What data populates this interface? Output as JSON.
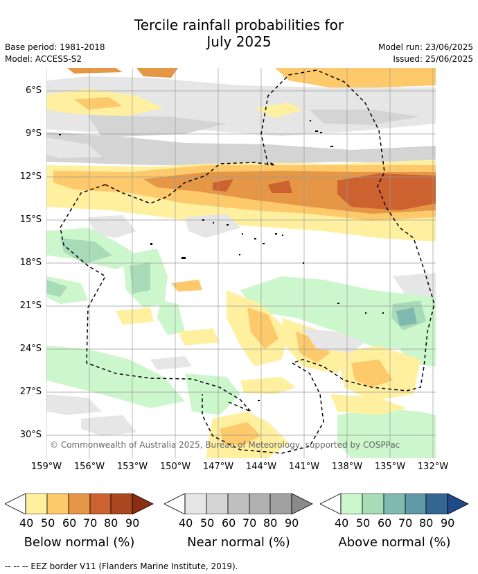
{
  "title_line1": "Tercile rainfall probabilities for",
  "title_line2": "July 2025",
  "base_period": "Base period: 1981-2018",
  "model": "Model: ACCESS-S2",
  "model_run": "Model run: 23/06/2025",
  "issued": "Issued: 25/06/2025",
  "lat_labels": [
    "6°S",
    "9°S",
    "12°S",
    "15°S",
    "18°S",
    "21°S",
    "24°S",
    "27°S",
    "30°S"
  ],
  "lon_labels": [
    "159°W",
    "156°W",
    "153°W",
    "150°W",
    "147°W",
    "144°W",
    "141°W",
    "138°W",
    "135°W",
    "132°W"
  ],
  "copyright": "© Commonwealth of Australia 2025, Bureau of Meteorology, supported by COSPPac",
  "legends": [
    {
      "title": "Below normal (%)",
      "ticks": [
        "40",
        "50",
        "60",
        "70",
        "80",
        "90"
      ],
      "colors": [
        "#fff0a0",
        "#fdc96a",
        "#e59746",
        "#cc6230",
        "#aa4620",
        "#8c2e14"
      ]
    },
    {
      "title": "Near normal (%)",
      "ticks": [
        "40",
        "50",
        "60",
        "70",
        "80",
        "90"
      ],
      "colors": [
        "#e6e6e6",
        "#d4d4d4",
        "#c0c0c0",
        "#b0b0b0",
        "#a0a0a0",
        "#8a8a8a"
      ]
    },
    {
      "title": "Above normal (%)",
      "ticks": [
        "40",
        "50",
        "60",
        "70",
        "80",
        "90"
      ],
      "colors": [
        "#ccf7cc",
        "#a8dbb8",
        "#7fb9b0",
        "#5f98a6",
        "#346694",
        "#1f4a86"
      ]
    }
  ],
  "footnote": "--  --  -- EEZ border V11 (Flanders Marine Institute, 2019)."
}
